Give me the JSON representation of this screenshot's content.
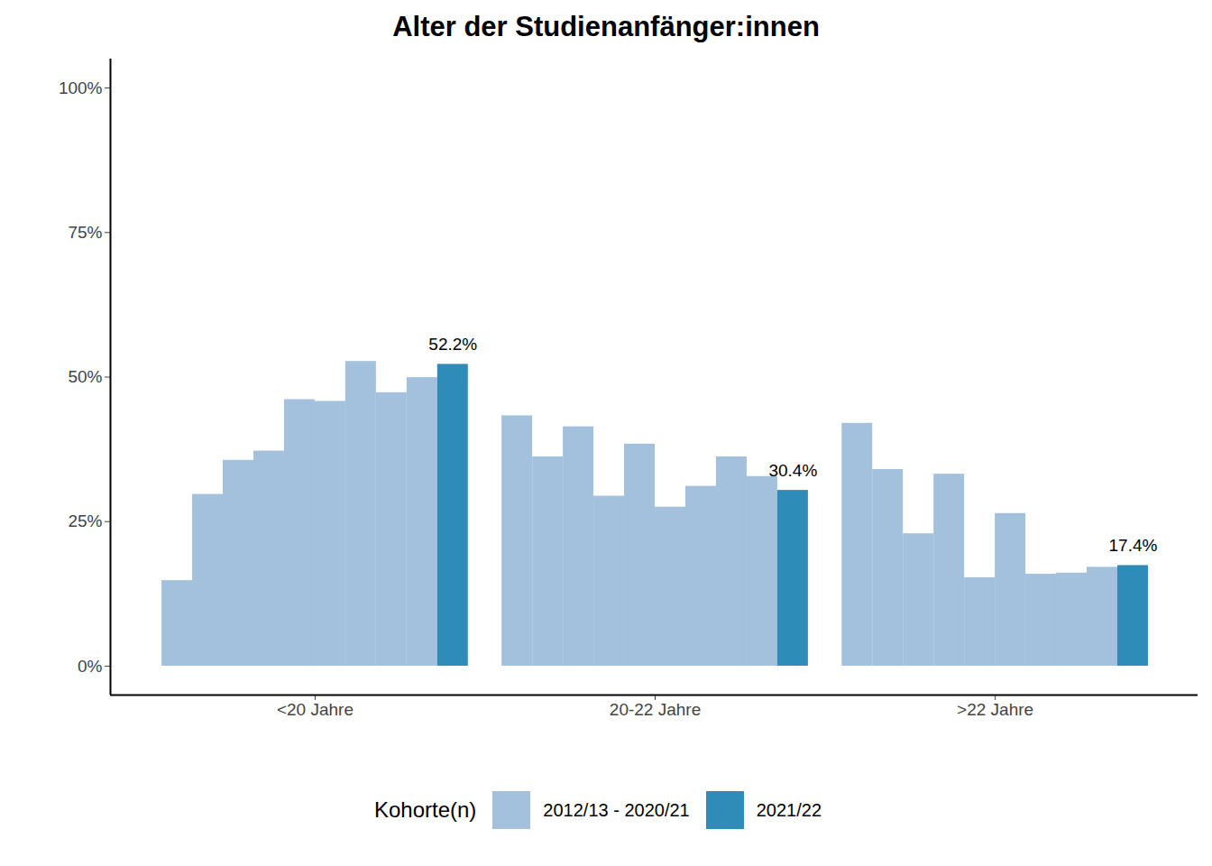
{
  "chart_data": {
    "type": "bar",
    "title": "Alter der Studienanfänger:innen",
    "categories": [
      "<20 Jahre",
      "20-22 Jahre",
      ">22 Jahre"
    ],
    "series": [
      {
        "name": "2012/13 - 2020/21",
        "color": "#a3c1dd",
        "values": [
          [
            14.8,
            29.7,
            35.6,
            37.2,
            46.1,
            45.8,
            52.7,
            47.3,
            49.9
          ],
          [
            43.3,
            36.2,
            41.4,
            29.4,
            38.4,
            27.5,
            31.1,
            36.2,
            32.8
          ],
          [
            42.0,
            34.0,
            22.9,
            33.2,
            15.3,
            26.4,
            15.9,
            16.1,
            17.1
          ]
        ]
      },
      {
        "name": "2021/22",
        "color": "#2f8cb8",
        "values": [
          52.2,
          30.4,
          17.4
        ],
        "data_labels": true,
        "value_labels": [
          "52.2%",
          "30.4%",
          "17.4%"
        ]
      }
    ],
    "ylim": [
      -5,
      105
    ],
    "yticks": [
      {
        "value": 0,
        "label": "0%"
      },
      {
        "value": 25,
        "label": "25%"
      },
      {
        "value": 50,
        "label": "50%"
      },
      {
        "value": 75,
        "label": "75%"
      },
      {
        "value": 100,
        "label": "100%"
      }
    ],
    "grid": false,
    "legend": "bottom",
    "legend_title": "Kohorte(n)"
  }
}
